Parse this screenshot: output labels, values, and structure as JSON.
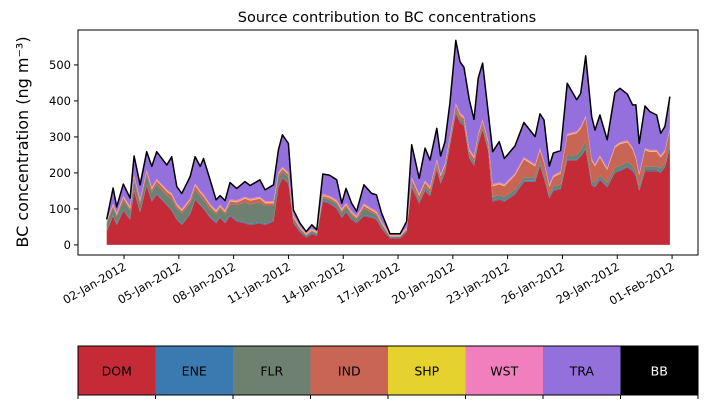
{
  "chart_data": {
    "type": "area",
    "stacked": true,
    "title": "Source contribution to BC concentrations",
    "xlabel": "",
    "ylabel": "BC concentration (ng m⁻³)",
    "x_unit": "day of January 2012 (32 = 01-Feb)",
    "xlim": [
      -0.52,
      33.42
    ],
    "ylim": [
      -28,
      597
    ],
    "yticks": [
      0,
      100,
      200,
      300,
      400,
      500
    ],
    "xticks": [
      2,
      5,
      8,
      11,
      14,
      17,
      20,
      23,
      26,
      29,
      32
    ],
    "xtick_labels": [
      "02-Jan-2012",
      "05-Jan-2012",
      "08-Jan-2012",
      "11-Jan-2012",
      "14-Jan-2012",
      "17-Jan-2012",
      "20-Jan-2012",
      "23-Jan-2012",
      "26-Jan-2012",
      "29-Jan-2012",
      "01-Feb-2012"
    ],
    "grid": false,
    "total_line_color": "#000000",
    "x": [
      1.05,
      1.4,
      1.6,
      1.96,
      2.33,
      2.55,
      2.88,
      3.24,
      3.52,
      3.79,
      4.34,
      4.61,
      4.89,
      5.16,
      5.62,
      5.89,
      6.17,
      6.35,
      6.71,
      7.04,
      7.26,
      7.53,
      7.8,
      8.17,
      8.62,
      8.9,
      9.44,
      9.72,
      10.18,
      10.45,
      10.67,
      11.0,
      11.27,
      11.64,
      11.97,
      12.28,
      12.55,
      12.88,
      13.24,
      13.64,
      13.92,
      14.15,
      14.46,
      14.73,
      15.13,
      15.55,
      15.82,
      16.1,
      16.56,
      17.11,
      17.47,
      17.75,
      18.16,
      18.48,
      18.75,
      19.12,
      19.33,
      19.57,
      19.84,
      20.16,
      20.39,
      20.61,
      20.9,
      21.16,
      21.39,
      21.63,
      21.94,
      22.18,
      22.54,
      22.82,
      23.4,
      23.89,
      24.5,
      24.77,
      24.99,
      25.28,
      25.5,
      25.9,
      26.26,
      26.78,
      27.0,
      27.27,
      27.6,
      27.78,
      28.05,
      28.45,
      28.87,
      29.15,
      29.55,
      29.84,
      30.02,
      30.2,
      30.52,
      30.79,
      31.16,
      31.38,
      31.61,
      31.88
    ],
    "series": [
      {
        "name": "DOM",
        "color": "#c52a37",
        "values": [
          38,
          80,
          55,
          95,
          70,
          150,
          90,
          165,
          120,
          140,
          110,
          95,
          70,
          55,
          85,
          125,
          110,
          100,
          75,
          60,
          75,
          60,
          80,
          65,
          60,
          55,
          60,
          55,
          65,
          160,
          185,
          170,
          60,
          35,
          20,
          30,
          25,
          120,
          115,
          100,
          75,
          90,
          70,
          60,
          80,
          75,
          70,
          45,
          18,
          18,
          35,
          160,
          115,
          150,
          135,
          210,
          170,
          200,
          275,
          365,
          340,
          330,
          240,
          220,
          280,
          320,
          260,
          120,
          125,
          120,
          140,
          175,
          175,
          220,
          185,
          130,
          150,
          155,
          235,
          235,
          245,
          265,
          165,
          160,
          180,
          160,
          200,
          205,
          215,
          205,
          190,
          150,
          205,
          205,
          205,
          200,
          215,
          270
        ]
      },
      {
        "name": "ENE",
        "color": "#3a7ab0",
        "values": 3
      },
      {
        "name": "FLR",
        "color": "#6e8070",
        "values": [
          18,
          20,
          20,
          25,
          22,
          25,
          20,
          25,
          22,
          25,
          25,
          30,
          28,
          30,
          28,
          25,
          22,
          22,
          22,
          22,
          22,
          22,
          30,
          42,
          55,
          55,
          55,
          50,
          40,
          25,
          15,
          15,
          10,
          6,
          4,
          5,
          4,
          8,
          8,
          10,
          12,
          12,
          10,
          8,
          18,
          12,
          10,
          8,
          2,
          2,
          3,
          8,
          8,
          8,
          8,
          8,
          8,
          8,
          8,
          8,
          8,
          8,
          8,
          8,
          8,
          8,
          8,
          10,
          10,
          10,
          10,
          10,
          10,
          10,
          10,
          8,
          10,
          10,
          10,
          12,
          15,
          20,
          10,
          10,
          10,
          10,
          12,
          12,
          12,
          12,
          10,
          10,
          10,
          10,
          10,
          10,
          10,
          10
        ]
      },
      {
        "name": "IND",
        "color": "#c96555",
        "values": [
          4,
          6,
          5,
          8,
          6,
          10,
          8,
          10,
          9,
          10,
          10,
          10,
          8,
          6,
          8,
          12,
          10,
          10,
          8,
          6,
          6,
          6,
          8,
          8,
          10,
          10,
          10,
          8,
          8,
          8,
          8,
          8,
          4,
          2,
          1,
          2,
          1,
          5,
          5,
          6,
          5,
          6,
          5,
          4,
          8,
          6,
          5,
          4,
          1,
          1,
          2,
          12,
          10,
          12,
          10,
          12,
          10,
          10,
          10,
          12,
          10,
          10,
          10,
          10,
          12,
          12,
          12,
          30,
          30,
          30,
          40,
          50,
          30,
          30,
          30,
          20,
          25,
          30,
          55,
          60,
          60,
          65,
          55,
          45,
          50,
          35,
          55,
          60,
          55,
          45,
          35,
          30,
          45,
          40,
          40,
          30,
          30,
          35
        ]
      },
      {
        "name": "SHP",
        "color": "#e5d22e",
        "values": 2
      },
      {
        "name": "WST",
        "color": "#f17fbd",
        "values": 4
      },
      {
        "name": "TRA",
        "color": "#9370db",
        "values": [
          2,
          43,
          17,
          32,
          23,
          53,
          40,
          50,
          58,
          75,
          68,
          101,
          47,
          43,
          60,
          74,
          67,
          99,
          67,
          28,
          25,
          26,
          46,
          33,
          42,
          36,
          47,
          31,
          45,
          62,
          89,
          80,
          14,
          8,
          3,
          10,
          3,
          55,
          57,
          56,
          15,
          40,
          22,
          12,
          52,
          41,
          45,
          22,
          1,
          1,
          16,
          89,
          43,
          90,
          74,
          85,
          50,
          60,
          92,
          174,
          142,
          136,
          136,
          102,
          154,
          156,
          77,
          90,
          113,
          71,
          76,
          96,
          77,
          95,
          113,
          52,
          61,
          58,
          140,
          87,
          92,
          166,
          117,
          95,
          112,
          78,
          147,
          149,
          128,
          118,
          145,
          83,
          117,
          106,
          97,
          61,
          65,
          88
        ]
      },
      {
        "name": "BB",
        "color": "#000000",
        "values": 0
      }
    ]
  },
  "legend": {
    "placement": "bottom colorbar",
    "items": [
      {
        "label": "DOM",
        "color": "#c52a37",
        "text_color": "#000000"
      },
      {
        "label": "ENE",
        "color": "#3a7ab0",
        "text_color": "#000000"
      },
      {
        "label": "FLR",
        "color": "#6e8070",
        "text_color": "#000000"
      },
      {
        "label": "IND",
        "color": "#c96555",
        "text_color": "#000000"
      },
      {
        "label": "SHP",
        "color": "#e5d22e",
        "text_color": "#000000"
      },
      {
        "label": "WST",
        "color": "#f17fbd",
        "text_color": "#000000"
      },
      {
        "label": "TRA",
        "color": "#9370db",
        "text_color": "#000000"
      },
      {
        "label": "BB",
        "color": "#000000",
        "text_color": "#ffffff"
      }
    ]
  }
}
